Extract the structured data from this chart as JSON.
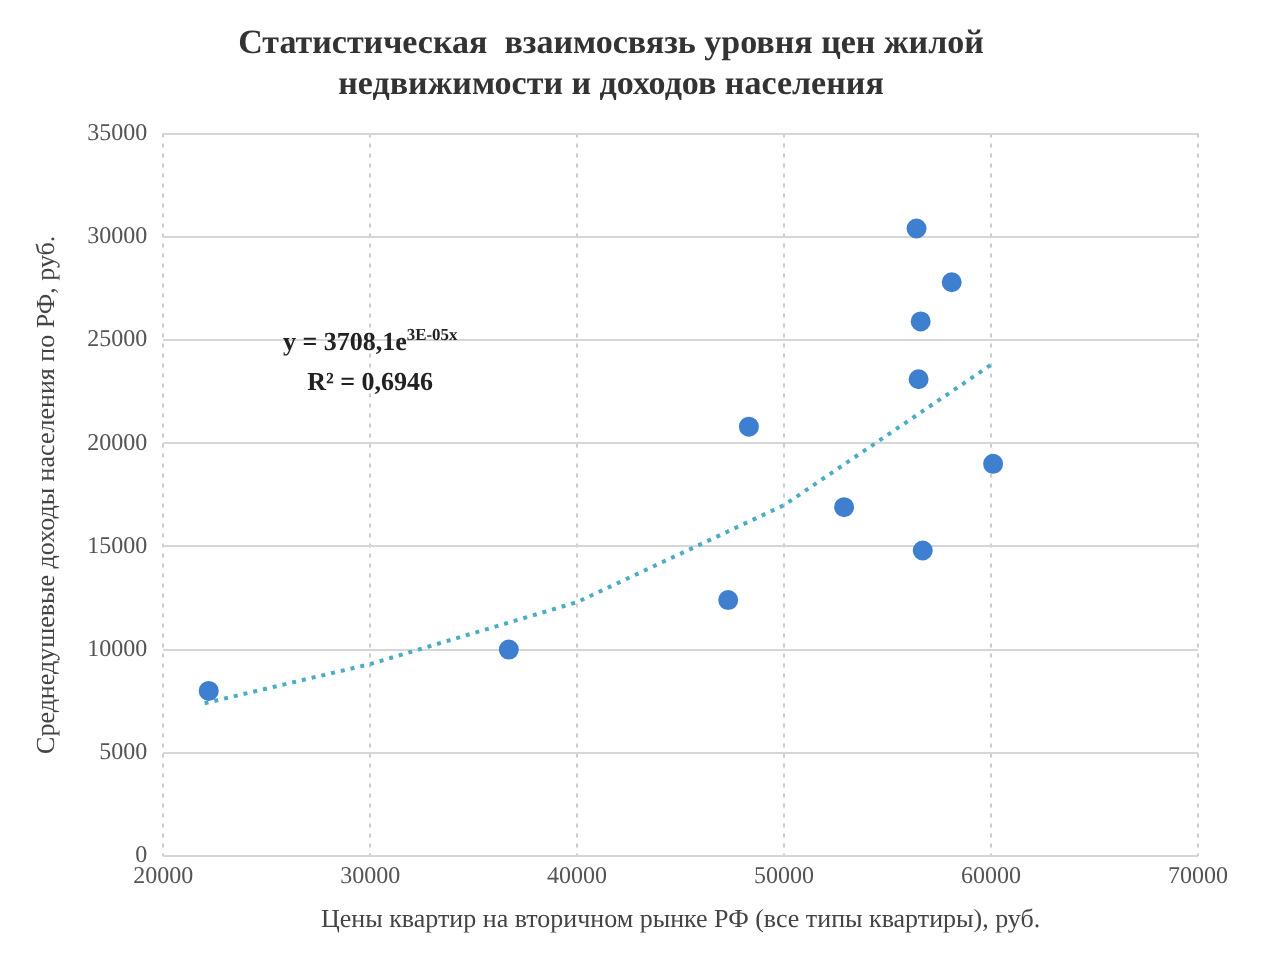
{
  "chart_data": {
    "type": "scatter",
    "title": "Статистическая  взаимосвязь уровня цен жилой недвижимости и доходов населения",
    "xlabel": "Цены квартир на вторичном рынке РФ (все типы квартиры), руб.",
    "ylabel": "Среднедушевые доходы населения по РФ, руб.",
    "x": [
      22200,
      36700,
      47300,
      48300,
      52900,
      56400,
      56600,
      56500,
      56700,
      58100,
      60100
    ],
    "series": [
      {
        "color": "#3f7fcf",
        "values": [
          8000,
          10000,
          12400,
          20800,
          16900,
          30400,
          25900,
          23100,
          14800,
          27800,
          19000
        ],
        "marker": "circle"
      },
      {
        "type": "line",
        "color": "#4bacc6",
        "x": [
          22000,
          30000,
          40000,
          50000,
          60000
        ],
        "values": [
          7400,
          9300,
          12300,
          17000,
          23800
        ],
        "line_style": "dotted",
        "marker": "none"
      }
    ],
    "annotations": [
      "y = 3708,1e$^{3E-05x}$",
      "R² = 0,6946"
    ],
    "xlim": [
      20000,
      70000
    ],
    "xticks": [
      20000,
      30000,
      40000,
      50000,
      60000,
      70000
    ],
    "ylim": [
      0,
      35000
    ],
    "yticks": [
      0,
      5000,
      10000,
      15000,
      20000,
      25000,
      30000,
      35000
    ],
    "grid": true,
    "legend": false
  }
}
